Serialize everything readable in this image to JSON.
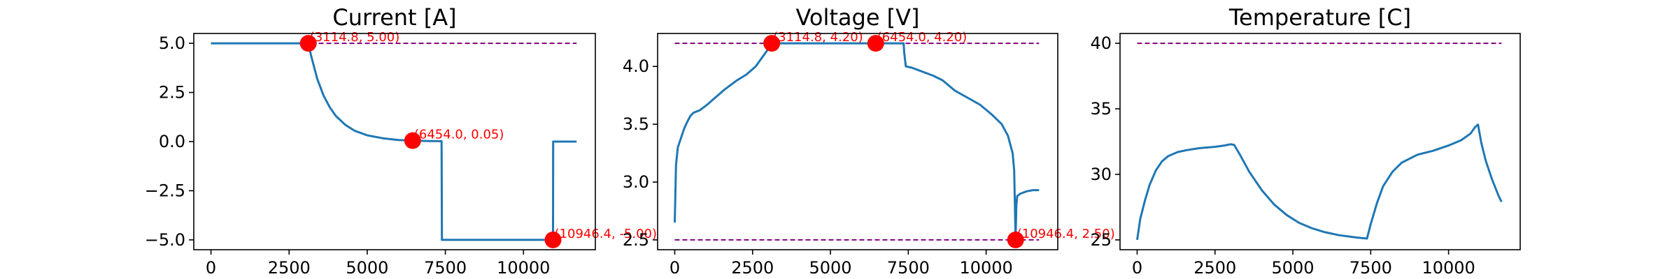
{
  "chart_data": [
    {
      "type": "line",
      "title": "Current [A]",
      "xlim": [
        -550,
        12300
      ],
      "ylim": [
        -5.5,
        5.5
      ],
      "xticks": [
        0,
        2500,
        5000,
        7500,
        10000
      ],
      "xtick_labels": [
        "0",
        "2500",
        "5000",
        "7500",
        "10000"
      ],
      "yticks": [
        -5.0,
        -2.5,
        0.0,
        2.5,
        5.0
      ],
      "ytick_labels": [
        "−5.0",
        "−2.5",
        "0.0",
        "2.5",
        "5.0"
      ],
      "series": [
        {
          "color": "#1f77b4",
          "x": [
            0,
            3114.8,
            3200,
            3400,
            3600,
            3800,
            4000,
            4300,
            4600,
            5000,
            5500,
            6000,
            6454,
            7000,
            7380,
            7390,
            10946.4,
            10950,
            11700
          ],
          "y": [
            5.0,
            5.0,
            4.4,
            3.2,
            2.35,
            1.75,
            1.3,
            0.85,
            0.55,
            0.32,
            0.17,
            0.08,
            0.05,
            0.03,
            0.02,
            -5.0,
            -5.0,
            0.0,
            0.0
          ]
        }
      ],
      "reference_lines": [
        {
          "y": 5.0,
          "x_range": [
            0,
            11700
          ],
          "color": "#800080",
          "style": "dashed"
        }
      ],
      "markers": [
        {
          "x": 3114.8,
          "y": 5.0,
          "label": "(3114.8, 5.00)"
        },
        {
          "x": 6454.0,
          "y": 0.05,
          "label": "(6454.0, 0.05)"
        },
        {
          "x": 10946.4,
          "y": -5.0,
          "label": "(10946.4, -5.00)"
        }
      ]
    },
    {
      "type": "line",
      "title": "Voltage [V]",
      "xlim": [
        -550,
        12300
      ],
      "ylim": [
        2.415,
        4.285
      ],
      "xticks": [
        0,
        2500,
        5000,
        7500,
        10000
      ],
      "xtick_labels": [
        "0",
        "2500",
        "5000",
        "7500",
        "10000"
      ],
      "yticks": [
        2.5,
        3.0,
        3.5,
        4.0
      ],
      "ytick_labels": [
        "2.5",
        "3.0",
        "3.5",
        "4.0"
      ],
      "series": [
        {
          "color": "#1f77b4",
          "x": [
            0,
            40,
            100,
            200,
            300,
            400,
            500,
            600,
            800,
            1000,
            1300,
            1600,
            2000,
            2300,
            2600,
            3000,
            3114.8,
            3500,
            4000,
            5000,
            6000,
            6454,
            7000,
            7350,
            7370,
            7420,
            7600,
            7800,
            8000,
            8300,
            8600,
            9000,
            9400,
            9800,
            10200,
            10500,
            10700,
            10850,
            10900,
            10946.4,
            10970,
            11000,
            11100,
            11300,
            11500,
            11700
          ],
          "y": [
            2.65,
            3.15,
            3.3,
            3.38,
            3.46,
            3.52,
            3.57,
            3.6,
            3.62,
            3.66,
            3.73,
            3.8,
            3.88,
            3.93,
            4.0,
            4.15,
            4.2,
            4.2,
            4.2,
            4.2,
            4.2,
            4.2,
            4.2,
            4.2,
            4.12,
            4.0,
            3.99,
            3.97,
            3.95,
            3.92,
            3.88,
            3.79,
            3.73,
            3.67,
            3.58,
            3.5,
            3.4,
            3.25,
            3.1,
            2.5,
            2.8,
            2.88,
            2.9,
            2.92,
            2.93,
            2.93
          ]
        }
      ],
      "reference_lines": [
        {
          "y": 4.2,
          "x_range": [
            0,
            11700
          ],
          "color": "#800080",
          "style": "dashed"
        },
        {
          "y": 2.5,
          "x_range": [
            0,
            11700
          ],
          "color": "#800080",
          "style": "dashed"
        }
      ],
      "markers": [
        {
          "x": 3114.8,
          "y": 4.2,
          "label": "(3114.8, 4.20)"
        },
        {
          "x": 6454.0,
          "y": 4.2,
          "label": "(6454.0, 4.20)"
        },
        {
          "x": 10946.4,
          "y": 2.5,
          "label": "(10946.4, 2.50)"
        }
      ]
    },
    {
      "type": "line",
      "title": "Temperature [C]",
      "xlim": [
        -550,
        12300
      ],
      "ylim": [
        24.25,
        40.75
      ],
      "xticks": [
        0,
        2500,
        5000,
        7500,
        10000
      ],
      "xtick_labels": [
        "0",
        "2500",
        "5000",
        "7500",
        "10000"
      ],
      "yticks": [
        25,
        30,
        35,
        40
      ],
      "ytick_labels": [
        "25",
        "30",
        "35",
        "40"
      ],
      "series": [
        {
          "color": "#1f77b4",
          "x": [
            0,
            100,
            250,
            400,
            600,
            800,
            1000,
            1300,
            1600,
            2000,
            2500,
            2800,
            3000,
            3114.8,
            3300,
            3600,
            4000,
            4400,
            4800,
            5200,
            5600,
            6000,
            6500,
            7000,
            7380,
            7500,
            7700,
            7900,
            8200,
            8500,
            9000,
            9500,
            10000,
            10400,
            10700,
            10850,
            10946.4,
            11050,
            11200,
            11400,
            11600,
            11700
          ],
          "y": [
            25.0,
            26.6,
            28.0,
            29.2,
            30.3,
            31.0,
            31.4,
            31.7,
            31.85,
            32.0,
            32.1,
            32.2,
            32.3,
            32.25,
            31.5,
            30.2,
            28.8,
            27.7,
            26.9,
            26.3,
            25.9,
            25.6,
            25.35,
            25.2,
            25.1,
            26.2,
            27.8,
            29.1,
            30.2,
            30.9,
            31.5,
            31.8,
            32.2,
            32.6,
            33.1,
            33.6,
            33.8,
            32.4,
            31.0,
            29.6,
            28.4,
            27.9
          ]
        }
      ],
      "reference_lines": [
        {
          "y": 40.0,
          "x_range": [
            0,
            11700
          ],
          "color": "#800080",
          "style": "dashed"
        }
      ],
      "markers": []
    }
  ]
}
